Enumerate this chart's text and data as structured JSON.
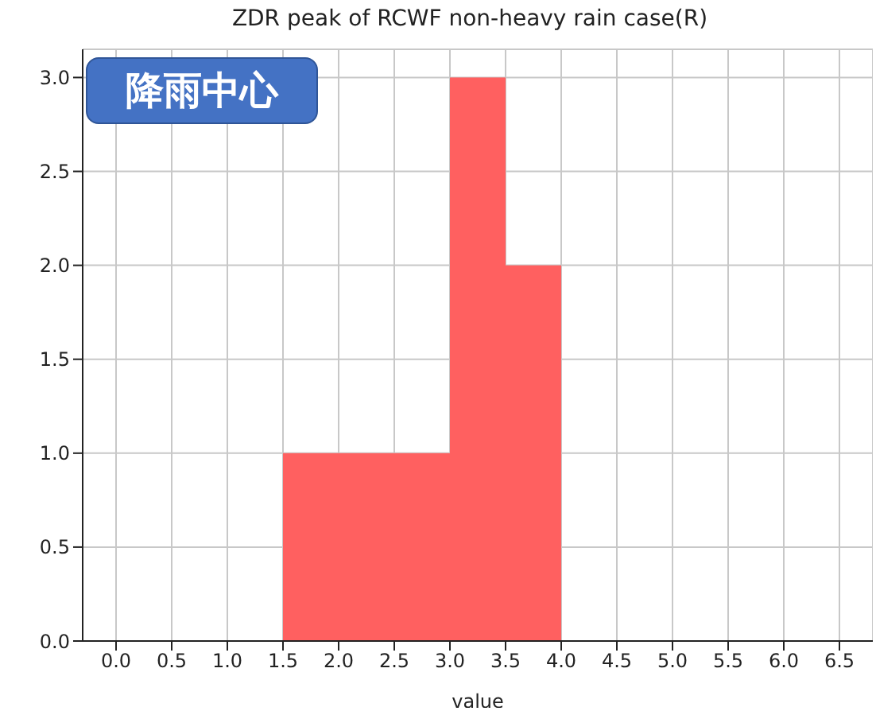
{
  "chart_data": {
    "type": "histogram",
    "title": "ZDR peak of RCWF non-heavy rain case(R)",
    "xlabel": "value",
    "bins": [
      1.5,
      2.0,
      2.5,
      3.0,
      3.5,
      4.0
    ],
    "values": [
      1,
      1,
      1,
      3,
      2
    ],
    "color": "#ff6060",
    "xlim": [
      -0.3,
      6.8
    ],
    "xticks": [
      {
        "value": 0,
        "label": "0.0"
      },
      0.5,
      {
        "value": 1,
        "label": "1.0"
      },
      1.5,
      {
        "value": 2,
        "label": "2.0"
      },
      2.5,
      {
        "value": 3,
        "label": "3.0"
      },
      3.5,
      {
        "value": 4,
        "label": "4.0"
      },
      4.5,
      {
        "value": 5,
        "label": "5.0"
      },
      5.5,
      {
        "value": 6,
        "label": "6.0"
      },
      6.5
    ],
    "ylim": [
      0,
      3.15
    ],
    "yticks": [
      {
        "value": 0,
        "label": "0.0"
      },
      0.5,
      {
        "value": 1,
        "label": "1.0"
      },
      1.5,
      {
        "value": 2,
        "label": "2.0"
      },
      2.5,
      {
        "value": 3,
        "label": "3.0"
      }
    ],
    "grid": true,
    "annotations": [
      "降雨中心"
    ]
  }
}
